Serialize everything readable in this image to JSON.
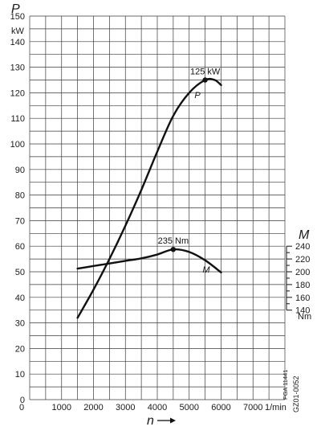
{
  "chart_data": {
    "type": "line",
    "x_symbol": "n",
    "x_unit": "1/min",
    "x_ticks": [
      0,
      1000,
      2000,
      3000,
      4000,
      5000,
      6000,
      7000
    ],
    "xlim": [
      0,
      8000
    ],
    "y_left": {
      "symbol": "P",
      "unit": "kW",
      "ticks": [
        0,
        10,
        20,
        30,
        40,
        50,
        60,
        70,
        80,
        90,
        100,
        110,
        120,
        130,
        140,
        150
      ],
      "ylim": [
        0,
        150
      ]
    },
    "y_right": {
      "symbol": "M",
      "unit": "Nm",
      "ticks": [
        140,
        160,
        180,
        200,
        220,
        240
      ],
      "ylim": [
        140,
        240
      ]
    },
    "grid": true,
    "series": [
      {
        "name": "P",
        "axis": "left",
        "x": [
          1500,
          2000,
          2500,
          3000,
          3500,
          4000,
          4500,
          5000,
          5500,
          5800,
          6000
        ],
        "y": [
          32,
          43,
          55,
          68,
          82,
          97,
          111,
          120,
          125,
          125,
          123
        ]
      },
      {
        "name": "M",
        "axis": "right",
        "x": [
          1500,
          2000,
          2500,
          3000,
          3500,
          4000,
          4500,
          5000,
          5500,
          6000
        ],
        "y": [
          205,
          209,
          213,
          217,
          221,
          227,
          235,
          231,
          218,
          199
        ]
      }
    ],
    "annotations": [
      {
        "text": "125 kW",
        "series": "P",
        "x": 5500,
        "y": 125
      },
      {
        "text": "235 Nm",
        "series": "M",
        "x": 4500,
        "y": 235
      }
    ],
    "side_labels": [
      "FGA 11441",
      "GZ01-0052"
    ]
  }
}
